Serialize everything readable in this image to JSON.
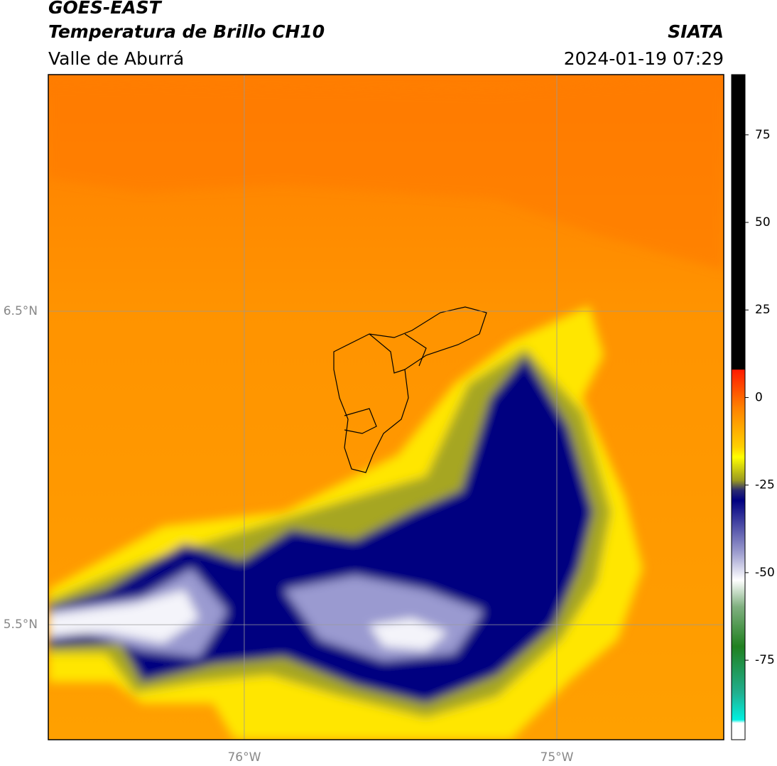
{
  "header": {
    "title": "GOES-EAST",
    "subtitle": "Temperatura de Brillo CH10",
    "region": "Valle de Aburrá",
    "source": "SIATA",
    "datetime": "2024-01-19 07:29"
  },
  "map": {
    "lonlim": [
      -76.627,
      -74.466
    ],
    "latlim": [
      5.133,
      7.255
    ],
    "lon_ticks": [
      {
        "value": -76,
        "label": "76°W"
      },
      {
        "value": -75,
        "label": "75°W"
      }
    ],
    "lat_ticks": [
      {
        "value": 6.5,
        "label": "6.5°N"
      },
      {
        "value": 5.5,
        "label": "5.5°N"
      }
    ]
  },
  "colorbar": {
    "lim": [
      -97.7,
      92.2
    ],
    "ticks": [
      -75,
      -50,
      -25,
      0,
      25,
      50,
      75
    ]
  }
}
